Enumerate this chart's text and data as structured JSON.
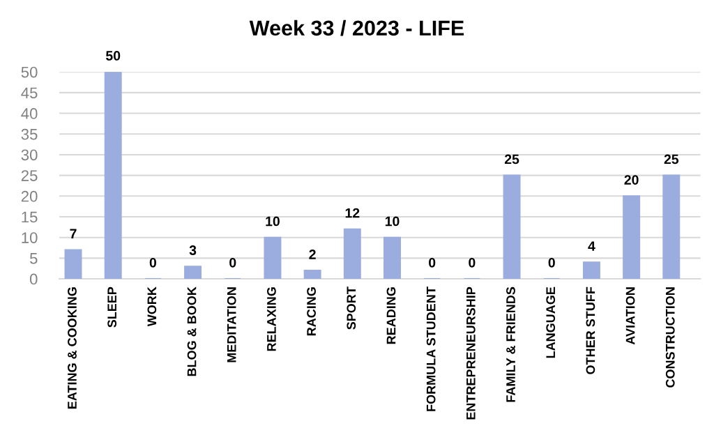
{
  "chart_data": {
    "type": "bar",
    "title": "Week 33 / 2023 - LIFE",
    "categories": [
      "EATING & COOKING",
      "SLEEP",
      "WORK",
      "BLOG & BOOK",
      "MEDITATION",
      "RELAXING",
      "RACING",
      "SPORT",
      "READING",
      "FORMULA STUDENT",
      "ENTREPRENEURSHIP",
      "FAMILY & FRIENDS",
      "LANGUAGE",
      "OTHER STUFF",
      "AVIATION",
      "CONSTRUCTION"
    ],
    "values": [
      7,
      50,
      0,
      3,
      0,
      10,
      2,
      12,
      10,
      0,
      0,
      25,
      0,
      4,
      20,
      25
    ],
    "color": "#9badde",
    "ylim": [
      0,
      50
    ],
    "yticks": [
      0,
      5,
      10,
      15,
      20,
      25,
      30,
      35,
      40,
      45,
      50
    ],
    "grid": "y",
    "data_labels": true,
    "legend": false
  }
}
